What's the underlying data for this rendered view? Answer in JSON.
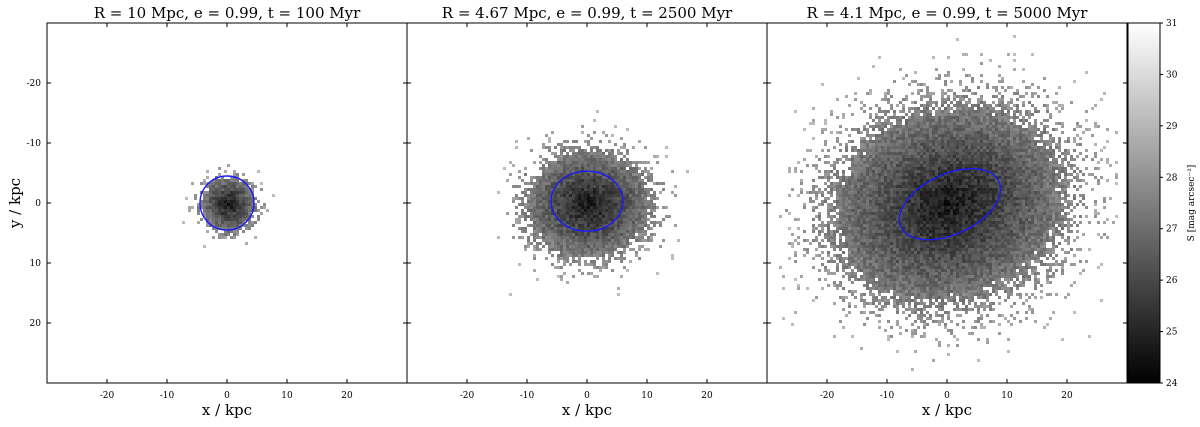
{
  "chart_data": [
    {
      "type": "heatmap",
      "title": "R = 10 Mpc, e = 0.99, t = 100 Myr",
      "xlabel": "x / kpc",
      "ylabel": "y / kpc",
      "xlim": [
        -30,
        30
      ],
      "ylim": [
        30,
        -30
      ],
      "xticks": [
        -20,
        -10,
        0,
        10,
        20
      ],
      "yticks": [
        -20,
        -10,
        0,
        10,
        20
      ],
      "grid": false,
      "distribution": {
        "center": [
          0,
          0
        ],
        "sigma_x": 2.2,
        "sigma_y": 2.2,
        "extent_kpc": 10,
        "angle_deg": 0
      },
      "contour": {
        "color": "#1a1aff",
        "cx": 0.0,
        "cy": 0.0,
        "rx": 4.5,
        "ry": 4.5,
        "angle_deg": 0
      }
    },
    {
      "type": "heatmap",
      "title": "R = 4.67 Mpc, e = 0.99, t = 2500 Myr",
      "xlabel": "x / kpc",
      "ylabel": "",
      "xlim": [
        -30,
        30
      ],
      "ylim": [
        30,
        -30
      ],
      "xticks": [
        -20,
        -10,
        0,
        10,
        20
      ],
      "yticks": [
        -20,
        -10,
        0,
        10,
        20
      ],
      "grid": false,
      "distribution": {
        "center": [
          0,
          0
        ],
        "sigma_x": 5.0,
        "sigma_y": 4.3,
        "extent_kpc": 20,
        "angle_deg": 0
      },
      "contour": {
        "color": "#1a1aff",
        "cx": 0.0,
        "cy": -0.3,
        "rx": 6.0,
        "ry": 5.0,
        "angle_deg": 0
      }
    },
    {
      "type": "heatmap",
      "title": "R = 4.1 Mpc, e = 0.99, t = 5000 Myr",
      "xlabel": "x / kpc",
      "ylabel": "",
      "xlim": [
        -30,
        30
      ],
      "ylim": [
        30,
        -30
      ],
      "xticks": [
        -20,
        -10,
        0,
        10,
        20
      ],
      "yticks": [
        -20,
        -10,
        0,
        10,
        20
      ],
      "grid": false,
      "distribution": {
        "center": [
          0,
          0
        ],
        "sigma_x": 9.5,
        "sigma_y": 7.8,
        "extent_kpc": 28,
        "angle_deg": -18
      },
      "contour": {
        "color": "#1a1aff",
        "cx": 0.5,
        "cy": 0.2,
        "rx": 9.0,
        "ry": 5.0,
        "angle_deg": -25
      }
    }
  ],
  "colorbar": {
    "label": "S [mag arcsec⁻²]",
    "range": [
      24,
      31
    ],
    "ticks": [
      24,
      25,
      26,
      27,
      28,
      29,
      30,
      31
    ],
    "colormap": "gray"
  }
}
